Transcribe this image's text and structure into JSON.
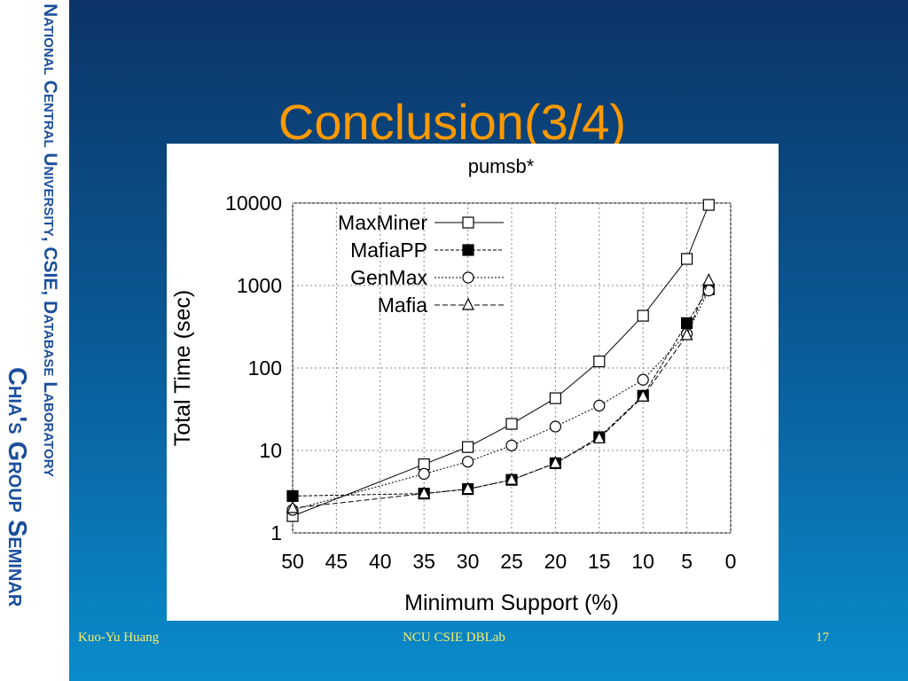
{
  "slide": {
    "title": "Conclusion(3/4)",
    "sidebar": [
      "National Central University, CSIE, Database Laboratory",
      "Chia's Group Seminar"
    ],
    "footer": {
      "left": "Kuo-Yu Huang",
      "center": "NCU CSIE DBLab",
      "right": "17"
    }
  },
  "chart_data": {
    "type": "line",
    "title": "pumsb*",
    "x_label": "Minimum Support (%)",
    "y_label": "Total Time (sec)",
    "x": [
      50,
      35,
      30,
      25,
      20,
      15,
      10,
      5,
      2.5
    ],
    "series": [
      {
        "name": "MaxMiner",
        "color": "#000000",
        "marker": "square",
        "dash": "none",
        "values": [
          1.6,
          6.8,
          11,
          21,
          43,
          120,
          430,
          2100,
          9500
        ]
      },
      {
        "name": "MafiaPP",
        "color": "#000000",
        "marker": "filled-square",
        "dash": "4,2",
        "values": [
          2.8,
          3.0,
          3.4,
          4.4,
          7,
          14.5,
          46,
          350,
          900
        ]
      },
      {
        "name": "GenMax",
        "color": "#000000",
        "marker": "circle",
        "dash": "2,2",
        "values": [
          1.9,
          5.2,
          7.3,
          11.5,
          19.5,
          35,
          72,
          260,
          870
        ]
      },
      {
        "name": "Mafia",
        "color": "#000000",
        "marker": "triangle",
        "dash": "6,3",
        "values": [
          2.0,
          3.0,
          3.4,
          4.4,
          7,
          14,
          45,
          250,
          1150
        ]
      }
    ],
    "xlim": [
      50,
      0
    ],
    "xticks": [
      50,
      45,
      40,
      35,
      30,
      25,
      20,
      15,
      10,
      5,
      0
    ],
    "ylim": [
      1,
      10000
    ],
    "yticks": [
      1,
      10,
      100,
      1000,
      10000
    ],
    "log_y": true,
    "legend": "upper left"
  }
}
